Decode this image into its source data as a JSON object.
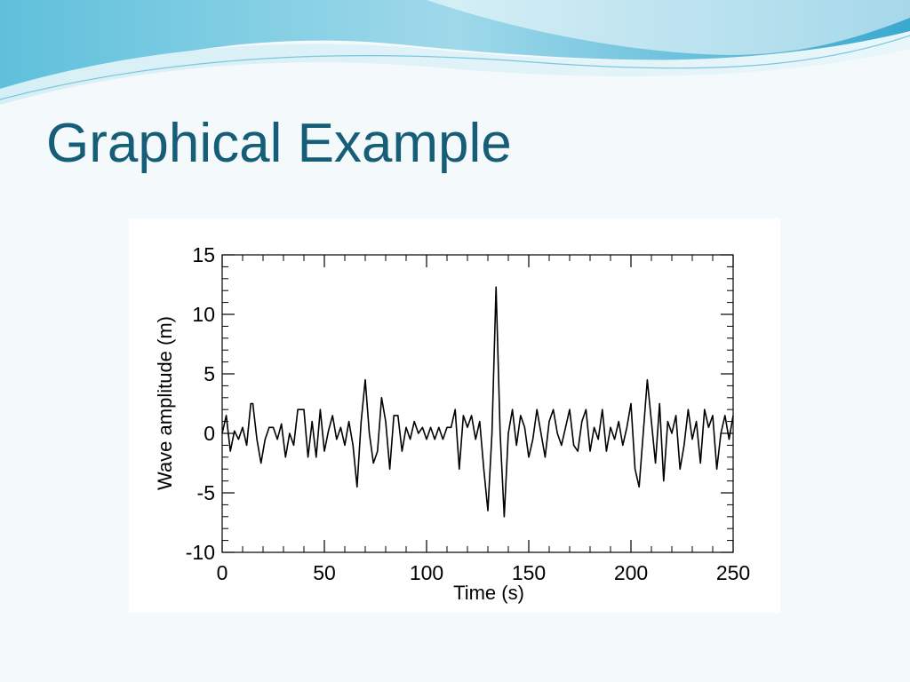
{
  "slide": {
    "title": "Graphical Example",
    "colors": {
      "title": "#165e78",
      "banner_light": "#bfe7f0",
      "banner_dark": "#4fb6d6"
    }
  },
  "chart_data": {
    "type": "line",
    "title": "",
    "xlabel": "Time (s)",
    "ylabel": "Wave amplitude (m)",
    "xlim": [
      0,
      250
    ],
    "ylim": [
      -10,
      15
    ],
    "x_ticks": [
      "0",
      "50",
      "100",
      "150",
      "200",
      "250"
    ],
    "y_ticks": [
      "-10",
      "-5",
      "0",
      "5",
      "10",
      "15"
    ],
    "grid": false,
    "line_color": "#000000",
    "series": [
      {
        "x": [
          0,
          2,
          4,
          6,
          8,
          10,
          12,
          14,
          15,
          17,
          19,
          21,
          23,
          25,
          27,
          29,
          31,
          33,
          35,
          37,
          40,
          42,
          44,
          46,
          48,
          50,
          52,
          54,
          56,
          58,
          60,
          62,
          64,
          66,
          68,
          70,
          72,
          74,
          76,
          78,
          80,
          82,
          84,
          86,
          88,
          90,
          92,
          94,
          96,
          98,
          100,
          102,
          104,
          106,
          108,
          110,
          112,
          114,
          116,
          118,
          120,
          122,
          124,
          126,
          128,
          130,
          132,
          134,
          136,
          138,
          140,
          142,
          144,
          146,
          148,
          150,
          152,
          154,
          156,
          158,
          160,
          162,
          164,
          166,
          168,
          170,
          172,
          174,
          176,
          178,
          180,
          182,
          184,
          186,
          188,
          190,
          192,
          194,
          196,
          198,
          200,
          202,
          204,
          206,
          208,
          210,
          212,
          214,
          216,
          218,
          220,
          222,
          224,
          226,
          228,
          230,
          232,
          234,
          236,
          238,
          240,
          242,
          244,
          246,
          248,
          250
        ],
        "y": [
          0,
          1.5,
          -1.5,
          0.2,
          -0.5,
          0.5,
          -1.0,
          2.5,
          2.5,
          -0.5,
          -2.5,
          -0.5,
          0.5,
          0.5,
          -0.5,
          0.8,
          -2.0,
          0.0,
          -1.0,
          2.0,
          2.0,
          -2.0,
          1.0,
          -2.0,
          2.0,
          -1.5,
          0.2,
          1.5,
          -0.5,
          0.5,
          -1.0,
          1.0,
          -1.0,
          -4.5,
          1.0,
          4.5,
          0.0,
          -2.5,
          -1.5,
          3.0,
          1.0,
          -3.0,
          1.5,
          1.5,
          -1.5,
          0.5,
          -0.5,
          1.0,
          0.0,
          0.5,
          -0.5,
          0.5,
          -0.5,
          0.5,
          -0.5,
          0.5,
          0.5,
          2.0,
          -3.0,
          1.5,
          0.5,
          1.5,
          -0.5,
          1.0,
          -3.0,
          -6.5,
          0.0,
          12.3,
          0.0,
          -7.0,
          0.0,
          2.0,
          -1.0,
          1.5,
          0.5,
          -2.0,
          -0.5,
          2.0,
          0.0,
          -2.0,
          1.0,
          2.0,
          0.0,
          -1.0,
          0.5,
          2.0,
          -1.0,
          -1.5,
          1.0,
          2.0,
          -1.5,
          0.5,
          -0.5,
          2.0,
          -1.5,
          0.5,
          -0.5,
          1.0,
          -1.0,
          0.5,
          2.5,
          -3.0,
          -4.5,
          0.0,
          4.5,
          1.0,
          -2.5,
          2.5,
          -4.0,
          1.0,
          0.0,
          1.5,
          -3.0,
          -1.0,
          2.0,
          -0.5,
          1.0,
          -2.5,
          2.0,
          0.5,
          1.5,
          -3.0,
          0.0,
          1.5,
          -0.5,
          1.5
        ]
      }
    ]
  }
}
